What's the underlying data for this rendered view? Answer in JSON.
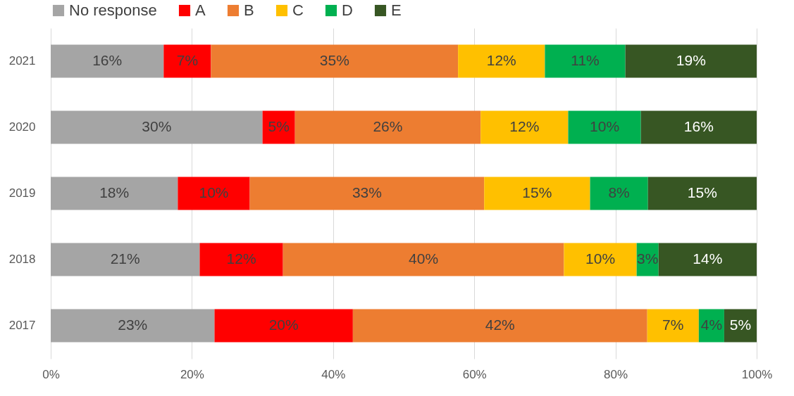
{
  "chart_data": {
    "type": "bar",
    "orientation": "horizontal",
    "stacked": true,
    "categories": [
      "2021",
      "2020",
      "2019",
      "2018",
      "2017"
    ],
    "series": [
      {
        "name": "No response",
        "color": "#a5a5a5",
        "values": [
          16.0,
          30.0,
          18.0,
          21.1,
          23.2
        ],
        "value_labels": [
          "16%",
          "30%",
          "18%",
          "21%",
          "23%"
        ]
      },
      {
        "name": "A",
        "color": "#ff0000",
        "values": [
          6.7,
          4.6,
          10.2,
          11.8,
          19.6
        ],
        "value_labels": [
          "7%",
          "5%",
          "10%",
          "12%",
          "20%"
        ]
      },
      {
        "name": "B",
        "color": "#ed7d31",
        "values": [
          35.0,
          26.3,
          33.2,
          39.8,
          41.7
        ],
        "value_labels": [
          "35%",
          "26%",
          "33%",
          "40%",
          "42%"
        ]
      },
      {
        "name": "C",
        "color": "#ffc000",
        "values": [
          12.3,
          12.4,
          15.0,
          10.3,
          7.3
        ],
        "value_labels": [
          "12%",
          "12%",
          "15%",
          "10%",
          "7%"
        ]
      },
      {
        "name": "D",
        "color": "#00b050",
        "values": [
          11.4,
          10.3,
          8.2,
          3.1,
          3.6
        ],
        "value_labels": [
          "11%",
          "10%",
          "8%",
          "3%",
          "4%"
        ]
      },
      {
        "name": "E",
        "color": "#375623",
        "values": [
          18.6,
          16.4,
          15.4,
          13.9,
          4.6
        ],
        "value_labels": [
          "19%",
          "16%",
          "15%",
          "14%",
          "5%"
        ]
      }
    ],
    "xlim": [
      0,
      100
    ],
    "xticks": [
      {
        "value": 0,
        "label": "0%"
      },
      {
        "value": 20,
        "label": "20%"
      },
      {
        "value": 40,
        "label": "40%"
      },
      {
        "value": 60,
        "label": "60%"
      },
      {
        "value": 80,
        "label": "80%"
      },
      {
        "value": 100,
        "label": "100%"
      }
    ],
    "grid": "x",
    "legend": "top"
  }
}
